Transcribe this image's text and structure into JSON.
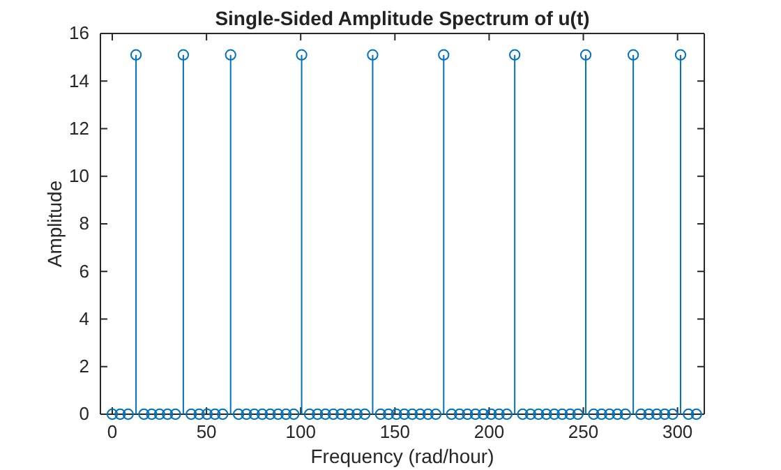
{
  "chart_data": {
    "type": "lollipop",
    "title": "Single-Sided Amplitude Spectrum of u(t)",
    "xlabel": "Frequency (rad/hour)",
    "ylabel": "Amplitude",
    "x": [
      0,
      4.2,
      8.4,
      12.6,
      16.8,
      20.9,
      25.1,
      29.3,
      33.5,
      37.7,
      41.9,
      46.1,
      50.3,
      54.5,
      58.6,
      62.8,
      67.0,
      71.2,
      75.4,
      79.6,
      83.8,
      88.0,
      92.2,
      96.3,
      100.5,
      104.7,
      108.9,
      113.1,
      117.3,
      121.5,
      125.7,
      129.9,
      134.0,
      138.2,
      142.4,
      146.6,
      150.8,
      155.0,
      159.2,
      163.4,
      167.6,
      171.7,
      175.9,
      180.1,
      184.3,
      188.5,
      192.7,
      196.9,
      201.1,
      205.3,
      209.4,
      213.6,
      217.8,
      222.0,
      226.2,
      230.4,
      234.6,
      238.8,
      243.0,
      247.1,
      251.3,
      255.5,
      259.7,
      263.9,
      268.1,
      272.3,
      276.5,
      280.6,
      284.8,
      289.0,
      293.2,
      297.4,
      301.6,
      305.8,
      310.0
    ],
    "values": [
      0,
      0,
      0,
      15.1,
      0,
      0,
      0,
      0,
      0,
      15.1,
      0,
      0,
      0,
      0,
      0,
      15.1,
      0,
      0,
      0,
      0,
      0,
      0,
      0,
      0,
      15.1,
      0,
      0,
      0,
      0,
      0,
      0,
      0,
      0,
      15.1,
      0,
      0,
      0,
      0,
      0,
      0,
      0,
      0,
      15.1,
      0,
      0,
      0,
      0,
      0,
      0,
      0,
      0,
      15.1,
      0,
      0,
      0,
      0,
      0,
      0,
      0,
      0,
      15.1,
      0,
      0,
      0,
      0,
      0,
      15.1,
      0,
      0,
      0,
      0,
      0,
      15.1,
      0,
      0
    ],
    "color": "#0072bd",
    "marker": "circle",
    "xlim": [
      -6.3,
      314.2
    ],
    "ylim": [
      0,
      16
    ],
    "xticks": [
      0,
      50,
      100,
      150,
      200,
      250,
      300
    ],
    "yticks": [
      0,
      2,
      4,
      6,
      8,
      10,
      12,
      14,
      16
    ]
  }
}
